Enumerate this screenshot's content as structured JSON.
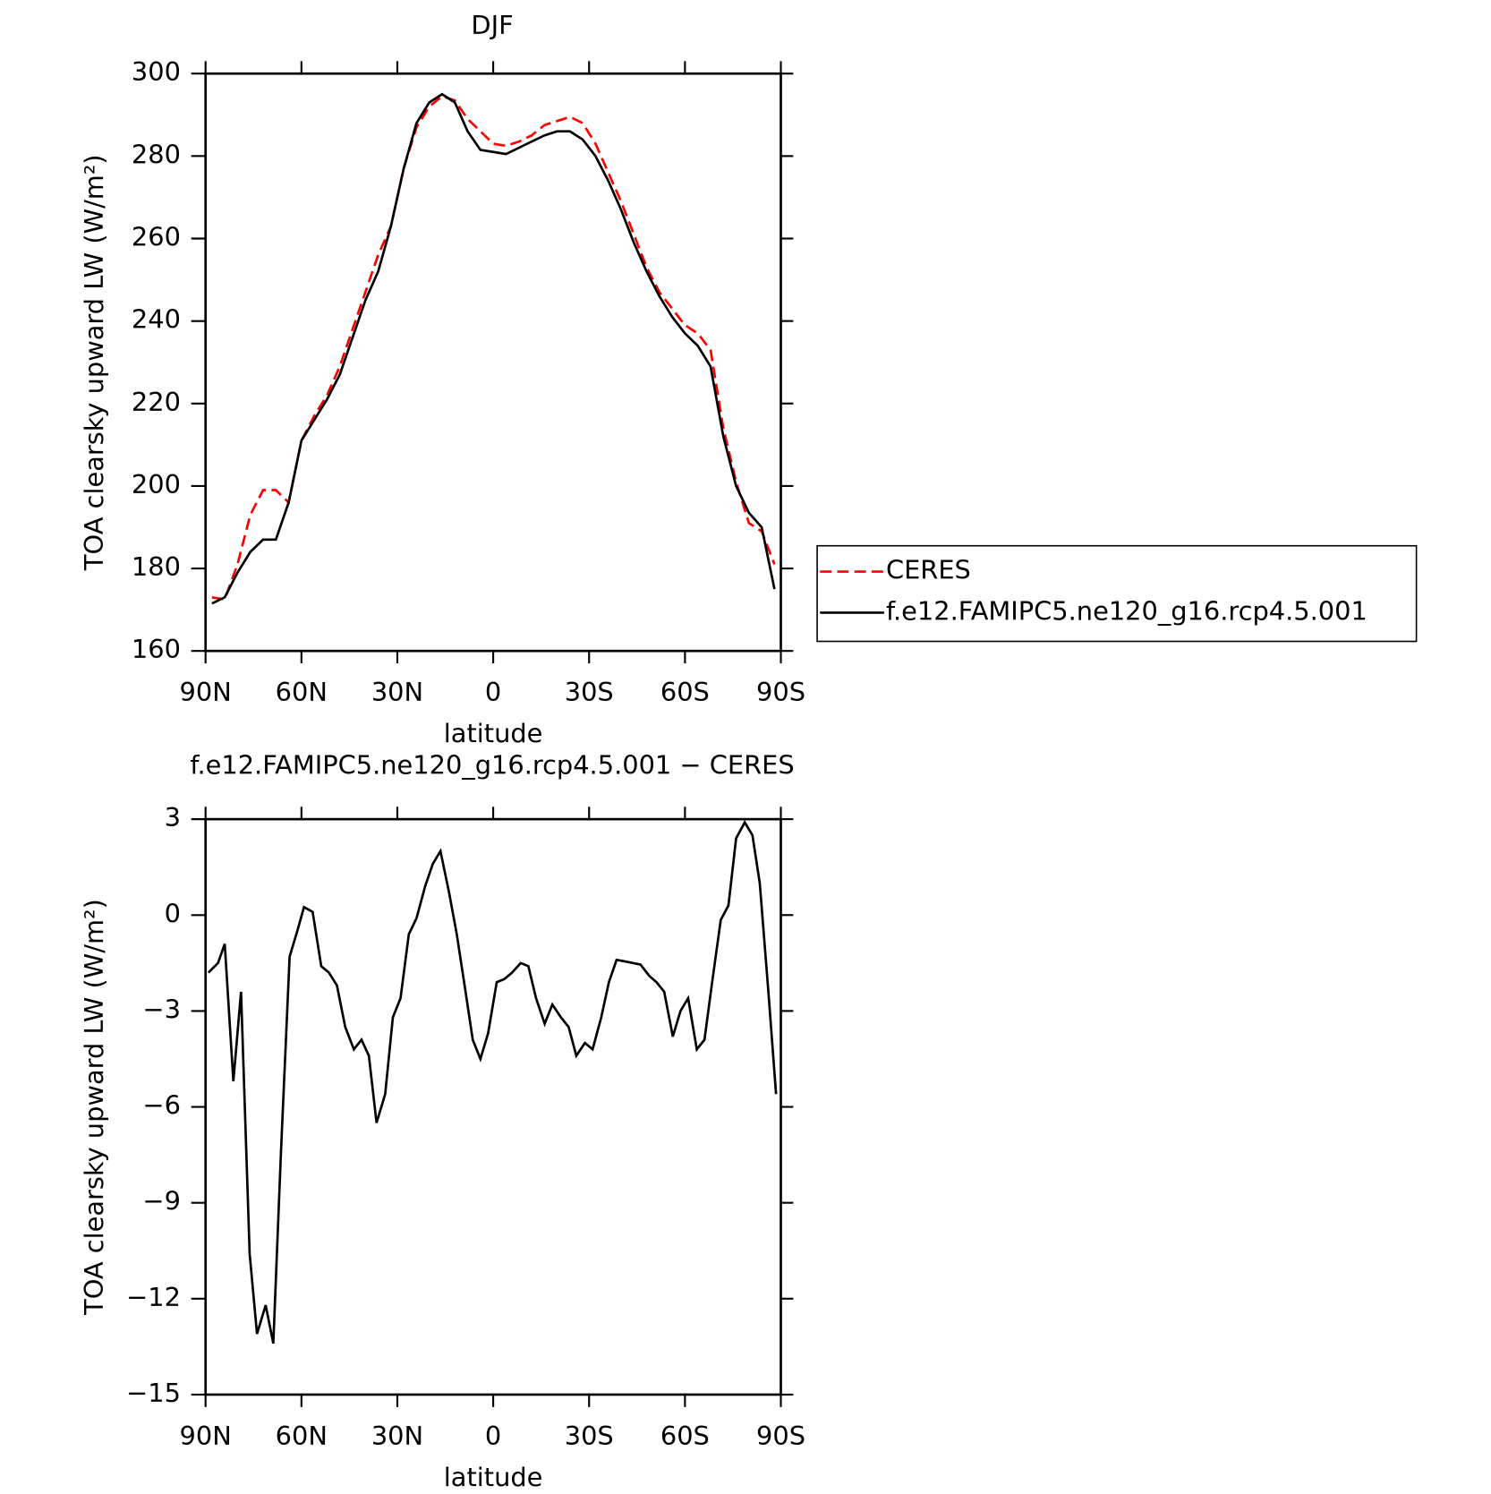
{
  "chart_data": [
    {
      "type": "line",
      "title": "DJF",
      "xlabel": "latitude",
      "ylabel": "TOA clearsky upward LW (W/m²)",
      "x": [
        88,
        84,
        80,
        76,
        72,
        68,
        64,
        60,
        56,
        52,
        48,
        44,
        40,
        36,
        32,
        28,
        24,
        20,
        16,
        12,
        8,
        4,
        0,
        -4,
        -8,
        -12,
        -16,
        -20,
        -24,
        -28,
        -32,
        -36,
        -40,
        -44,
        -48,
        -52,
        -56,
        -60,
        -64,
        -68,
        -72,
        -76,
        -80,
        -84,
        -88
      ],
      "series": [
        {
          "name": "CERES",
          "color": "#ff0000",
          "linestyle": "dashed",
          "values": [
            173,
            172.5,
            181,
            193,
            199,
            199,
            196,
            211,
            217,
            222,
            229,
            238,
            247,
            256,
            263,
            277,
            287,
            292,
            294.5,
            293.5,
            289,
            286,
            283,
            282.5,
            283.5,
            285,
            287.5,
            288.5,
            289.5,
            288,
            283,
            276,
            269,
            261,
            253,
            247,
            243,
            239,
            237,
            233,
            214,
            201,
            191,
            189,
            181
          ]
        },
        {
          "name": "f.e12.FAMIPC5.ne120_g16.rcp4.5.001",
          "color": "#000000",
          "linestyle": "solid",
          "values": [
            171.5,
            173,
            179,
            184,
            187,
            187,
            196,
            211,
            216,
            221,
            227,
            236,
            245,
            252,
            263,
            277,
            288,
            293,
            295,
            293,
            286,
            281.5,
            281,
            280.5,
            282,
            283.5,
            285,
            286,
            286,
            284,
            280,
            274,
            267,
            259,
            252,
            246,
            241,
            237,
            234,
            229,
            212,
            200,
            193.5,
            190,
            175
          ]
        }
      ],
      "xlim": [
        90,
        -90
      ],
      "ylim": [
        160,
        300
      ],
      "xticks": [
        {
          "value": 90,
          "label": "90N"
        },
        {
          "value": 60,
          "label": "60N"
        },
        {
          "value": 30,
          "label": "30N"
        },
        0,
        {
          "value": -30,
          "label": "30S"
        },
        {
          "value": -60,
          "label": "60S"
        },
        {
          "value": -90,
          "label": "90S"
        }
      ],
      "yticks": [
        160,
        180,
        200,
        220,
        240,
        260,
        280,
        300
      ],
      "legend": "outside-right"
    },
    {
      "type": "line",
      "title": "f.e12.FAMIPC5.ne120_g16.rcp4.5.001 − CERES",
      "xlabel": "latitude",
      "ylabel": "TOA clearsky upward LW (W/m²)",
      "x": [
        89.1,
        86.1,
        84.0,
        81.3,
        78.9,
        76.2,
        73.9,
        71.2,
        68.8,
        66.4,
        63.7,
        61.3,
        59.2,
        56.5,
        53.8,
        51.4,
        48.9,
        46.3,
        43.6,
        41.2,
        38.9,
        36.5,
        33.8,
        31.4,
        29.0,
        26.4,
        24.0,
        21.3,
        18.9,
        16.5,
        13.8,
        11.4,
        9.1,
        6.4,
        4.0,
        1.6,
        -1.1,
        -3.5,
        -5.9,
        -8.6,
        -11.0,
        -13.4,
        -16.1,
        -18.5,
        -21.2,
        -23.6,
        -26.0,
        -28.7,
        -31.1,
        -33.8,
        -36.2,
        -38.6,
        -41.3,
        -43.7,
        -46.1,
        -48.8,
        -51.1,
        -53.5,
        -56.2,
        -58.6,
        -61.0,
        -63.7,
        -66.1,
        -68.5,
        -71.2,
        -73.6,
        -76.0,
        -78.7,
        -81.1,
        -83.4,
        -86.1,
        -88.5
      ],
      "series": [
        {
          "name": "f.e12.FAMIPC5.ne120_g16.rcp4.5.001 − CERES",
          "color": "#000000",
          "linestyle": "solid",
          "values": [
            -1.8,
            -1.5,
            -0.9,
            -5.2,
            -2.4,
            -10.6,
            -13.1,
            -12.2,
            -13.4,
            -7.4,
            -1.3,
            -0.5,
            0.25,
            0.1,
            -1.6,
            -1.8,
            -2.2,
            -3.5,
            -4.2,
            -3.9,
            -4.4,
            -6.5,
            -5.6,
            -3.2,
            -2.6,
            -0.6,
            -0.1,
            0.9,
            1.6,
            2.0,
            0.7,
            -0.6,
            -2.1,
            -3.9,
            -4.5,
            -3.7,
            -2.1,
            -2.0,
            -1.8,
            -1.5,
            -1.6,
            -2.6,
            -3.4,
            -2.8,
            -3.2,
            -3.5,
            -4.4,
            -4.0,
            -4.2,
            -3.2,
            -2.1,
            -1.4,
            -1.45,
            -1.5,
            -1.55,
            -1.9,
            -2.1,
            -2.4,
            -3.8,
            -3.0,
            -2.6,
            -4.2,
            -3.9,
            -2.1,
            -0.15,
            0.3,
            2.4,
            2.9,
            2.5,
            1.0,
            -2.4,
            -5.6
          ]
        }
      ],
      "xlim": [
        90,
        -90
      ],
      "ylim": [
        -15,
        3
      ],
      "xticks": [
        {
          "value": 90,
          "label": "90N"
        },
        {
          "value": 60,
          "label": "60N"
        },
        {
          "value": 30,
          "label": "30N"
        },
        0,
        {
          "value": -30,
          "label": "30S"
        },
        {
          "value": -60,
          "label": "60S"
        },
        {
          "value": -90,
          "label": "90S"
        }
      ],
      "yticks": [
        {
          "value": -15,
          "label": "−15"
        },
        {
          "value": -12,
          "label": "−12"
        },
        {
          "value": -9,
          "label": "−9"
        },
        {
          "value": -6,
          "label": "−6"
        },
        {
          "value": -3,
          "label": "−3"
        },
        0,
        3
      ]
    }
  ]
}
